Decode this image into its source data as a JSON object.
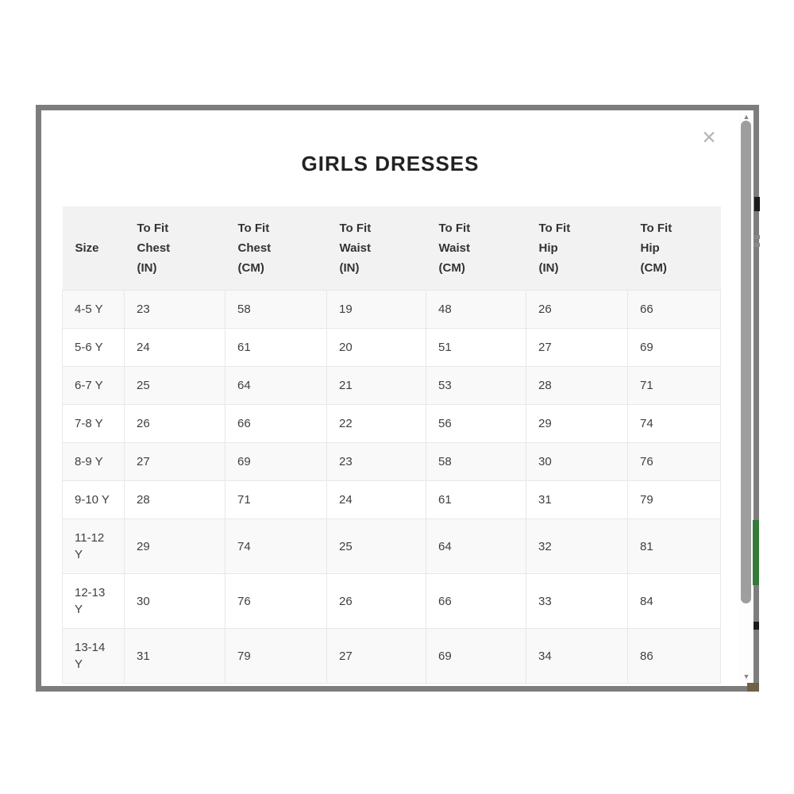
{
  "modal": {
    "title": "GIRLS DRESSES",
    "close_icon": "✕",
    "table": {
      "columns": [
        "Size",
        "To Fit\nChest\n(IN)",
        "To Fit\nChest\n(CM)",
        "To Fit\nWaist\n(IN)",
        "To Fit\nWaist\n(CM)",
        "To Fit\nHip\n(IN)",
        "To Fit\nHip\n(CM)"
      ],
      "rows": [
        [
          "4-5 Y",
          "23",
          "58",
          "19",
          "48",
          "26",
          "66"
        ],
        [
          "5-6 Y",
          "24",
          "61",
          "20",
          "51",
          "27",
          "69"
        ],
        [
          "6-7 Y",
          "25",
          "64",
          "21",
          "53",
          "28",
          "71"
        ],
        [
          "7-8 Y",
          "26",
          "66",
          "22",
          "56",
          "29",
          "74"
        ],
        [
          "8-9 Y",
          "27",
          "69",
          "23",
          "58",
          "30",
          "76"
        ],
        [
          "9-10 Y",
          "28",
          "71",
          "24",
          "61",
          "31",
          "79"
        ],
        [
          "11-12\nY",
          "29",
          "74",
          "25",
          "64",
          "32",
          "81"
        ],
        [
          "12-13\nY",
          "30",
          "76",
          "26",
          "66",
          "33",
          "84"
        ],
        [
          "13-14\nY",
          "31",
          "79",
          "27",
          "69",
          "34",
          "86"
        ]
      ]
    },
    "scrollbar": {
      "up_icon": "▲",
      "down_icon": "▼"
    }
  },
  "colors": {
    "modal_border": "#7d7d7d",
    "header_bg": "#f2f2f2",
    "header_text": "#333333",
    "row_alt_bg": "#f9f9f9",
    "cell_border": "#e8e8e8",
    "cell_text": "#3f3f3f",
    "title_text": "#222222",
    "close_icon": "#b7b7b7",
    "scrollbar_thumb": "#9e9e9e",
    "scroll_arrow": "#858585",
    "artifact_green": "#347a38",
    "artifact_tan": "#6f6047",
    "artifact_dark": "#1c1c1c",
    "artifact_gray": "#8a8a8a"
  }
}
